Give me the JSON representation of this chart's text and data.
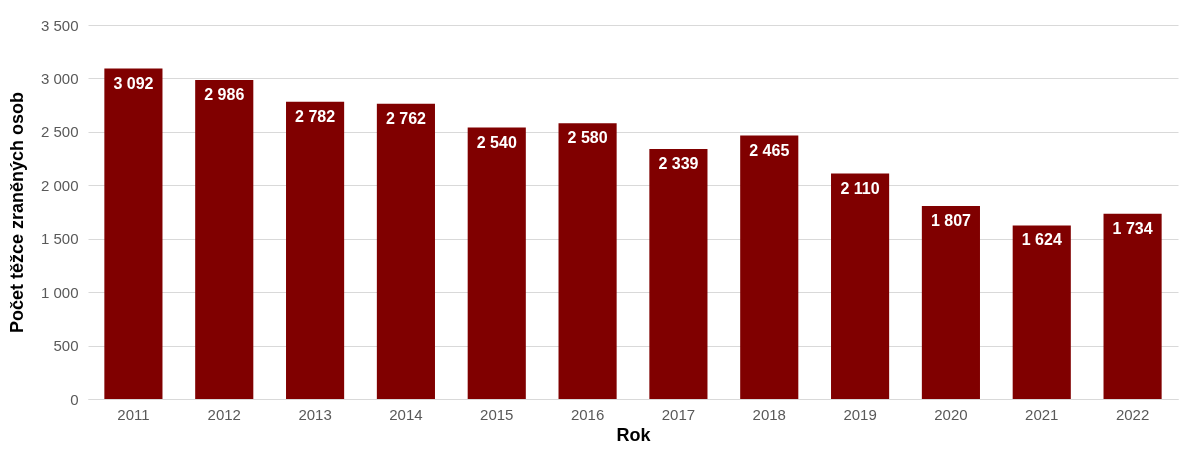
{
  "chart_data": {
    "type": "bar",
    "xlabel": "Rok",
    "ylabel": "Počet těžce zraněných osob",
    "categories": [
      "2011",
      "2012",
      "2013",
      "2014",
      "2015",
      "2016",
      "2017",
      "2018",
      "2019",
      "2020",
      "2021",
      "2022"
    ],
    "values": [
      3092,
      2986,
      2782,
      2762,
      2540,
      2580,
      2339,
      2465,
      2110,
      1807,
      1624,
      1734
    ],
    "value_labels": [
      "3 092",
      "2 986",
      "2 782",
      "2 762",
      "2 540",
      "2 580",
      "2 339",
      "2 465",
      "2 110",
      "1 807",
      "1 624",
      "1 734"
    ],
    "color": "#800000",
    "ylim": [
      0,
      3500
    ],
    "yticks": [
      0,
      500,
      {
        "value": 1000,
        "label": "1 000"
      },
      {
        "value": 1500,
        "label": "1 500"
      },
      {
        "value": 2000,
        "label": "2 000"
      },
      {
        "value": 2500,
        "label": "2 500"
      },
      {
        "value": 3000,
        "label": "3 000"
      },
      {
        "value": 3500,
        "label": "3 500"
      }
    ],
    "grid": "y"
  }
}
